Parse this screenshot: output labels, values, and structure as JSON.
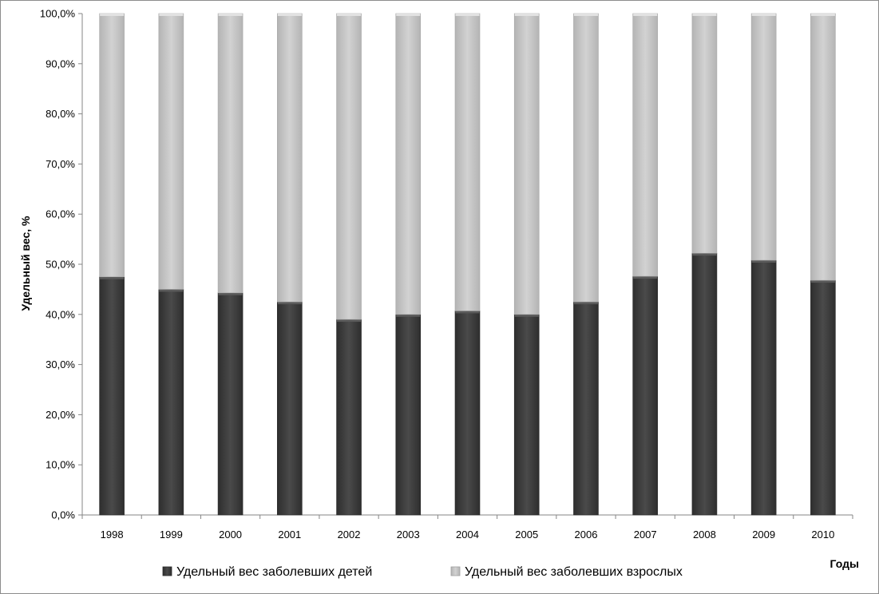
{
  "chart_data": {
    "type": "bar",
    "stacked": true,
    "categories": [
      "1998",
      "1999",
      "2000",
      "2001",
      "2002",
      "2003",
      "2004",
      "2005",
      "2006",
      "2007",
      "2008",
      "2009",
      "2010"
    ],
    "series": [
      {
        "name": "Удельный вес заболевших детей",
        "color": "#3f3f3f",
        "values": [
          47.5,
          45.0,
          44.3,
          42.5,
          39.0,
          40.0,
          40.7,
          40.0,
          42.5,
          47.6,
          52.2,
          50.8,
          46.8
        ]
      },
      {
        "name": "Удельный вес заболевших взрослых",
        "color": "#c8c8c8",
        "values": [
          52.5,
          55.0,
          55.7,
          57.5,
          61.0,
          60.0,
          59.3,
          60.0,
          57.5,
          52.4,
          47.8,
          49.2,
          53.2
        ]
      }
    ],
    "ylabel": "Удельный вес, %",
    "xlabel": "Годы",
    "ylim": [
      0,
      100
    ],
    "yticks": [
      "0,0%",
      "10,0%",
      "20,0%",
      "30,0%",
      "40,0%",
      "50,0%",
      "60,0%",
      "70,0%",
      "80,0%",
      "90,0%",
      "100,0%"
    ],
    "grid": false,
    "legend_position": "bottom"
  }
}
